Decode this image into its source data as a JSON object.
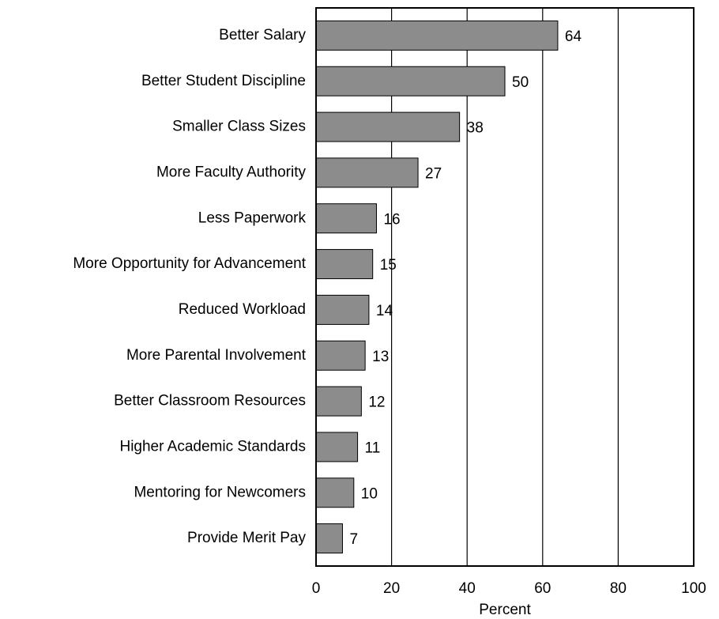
{
  "chart_data": {
    "type": "barh",
    "categories": [
      "Better Salary",
      "Better Student Discipline",
      "Smaller Class Sizes",
      "More Faculty Authority",
      "Less Paperwork",
      "More Opportunity for Advancement",
      "Reduced Workload",
      "More Parental Involvement",
      "Better Classroom Resources",
      "Higher Academic Standards",
      "Mentoring for Newcomers",
      "Provide Merit Pay"
    ],
    "values": [
      64,
      50,
      38,
      27,
      16,
      15,
      14,
      13,
      12,
      11,
      10,
      7
    ],
    "color": "#8c8c8c",
    "xlabel": "Percent",
    "xlim": [
      0,
      100
    ],
    "xticks": [
      0,
      20,
      40,
      60,
      80,
      100
    ],
    "grid": true
  }
}
